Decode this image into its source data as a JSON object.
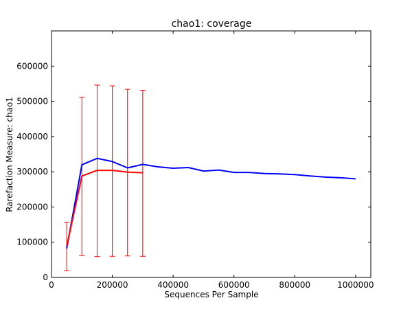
{
  "chart_data": {
    "type": "line",
    "title": "chao1: coverage",
    "xlabel": "Sequences Per Sample",
    "ylabel": "Rarefaction Measure: chao1",
    "xlim": [
      0,
      1050000
    ],
    "ylim": [
      0,
      700000
    ],
    "xticks": [
      0,
      200000,
      400000,
      600000,
      800000,
      1000000
    ],
    "yticks": [
      0,
      100000,
      200000,
      300000,
      400000,
      500000,
      600000
    ],
    "xtick_labels": [
      "0",
      "200000",
      "400000",
      "600000",
      "800000",
      "1000000"
    ],
    "ytick_labels": [
      "0",
      "100000",
      "200000",
      "300000",
      "400000",
      "500000",
      "600000"
    ],
    "grid": false,
    "series": [
      {
        "color": "#0000ff",
        "x": [
          50000,
          100000,
          150000,
          200000,
          250000,
          300000,
          350000,
          400000,
          450000,
          500000,
          550000,
          600000,
          650000,
          700000,
          750000,
          800000,
          850000,
          900000,
          950000,
          1000000
        ],
        "y": [
          82000,
          320000,
          338000,
          329000,
          311000,
          321000,
          314000,
          310000,
          312000,
          302000,
          305000,
          298000,
          298000,
          295000,
          294000,
          292000,
          288000,
          285000,
          283000,
          280000
        ]
      },
      {
        "color": "#ff0000",
        "x": [
          50000,
          100000,
          150000,
          200000,
          250000,
          300000
        ],
        "y": [
          88000,
          288000,
          304000,
          304000,
          299000,
          297000
        ],
        "err_low": [
          19000,
          62000,
          59000,
          60000,
          61000,
          60000
        ],
        "err_high": [
          157000,
          512000,
          546000,
          544000,
          534000,
          531000
        ]
      }
    ]
  }
}
